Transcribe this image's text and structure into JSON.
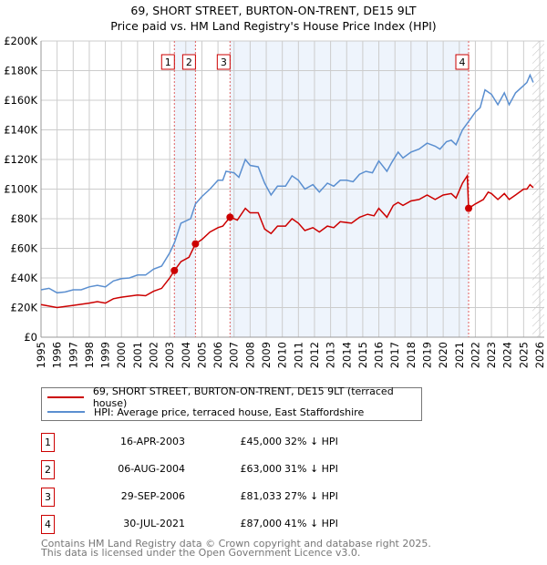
{
  "title_line1": "69, SHORT STREET, BURTON-ON-TRENT, DE15 9LT",
  "title_line2": "Price paid vs. HM Land Registry's House Price Index (HPI)",
  "chart_data": {
    "type": "line",
    "title": "69, SHORT STREET, BURTON-ON-TRENT, DE15 9LT - Price paid vs. HM Land Registry's House Price Index (HPI)",
    "xlim": [
      1995,
      2026
    ],
    "ylim": [
      0,
      200000
    ],
    "grid": true,
    "x_ticks": [
      "1995",
      "1996",
      "1997",
      "1998",
      "1999",
      "2000",
      "2001",
      "2002",
      "2003",
      "2004",
      "2005",
      "2006",
      "2007",
      "2008",
      "2009",
      "2010",
      "2011",
      "2012",
      "2013",
      "2014",
      "2015",
      "2016",
      "2017",
      "2018",
      "2019",
      "2020",
      "2021",
      "2022",
      "2023",
      "2024",
      "2025",
      "2026"
    ],
    "y_ticks": [
      {
        "v": 0,
        "label": "£0"
      },
      {
        "v": 20000,
        "label": "£20K"
      },
      {
        "v": 40000,
        "label": "£40K"
      },
      {
        "v": 60000,
        "label": "£60K"
      },
      {
        "v": 80000,
        "label": "£80K"
      },
      {
        "v": 100000,
        "label": "£100K"
      },
      {
        "v": 120000,
        "label": "£120K"
      },
      {
        "v": 140000,
        "label": "£140K"
      },
      {
        "v": 160000,
        "label": "£160K"
      },
      {
        "v": 180000,
        "label": "£180K"
      },
      {
        "v": 200000,
        "label": "£200K"
      }
    ],
    "colors": {
      "property": "#cc0000",
      "hpi": "#5b8fd0",
      "band": "#eef4fc",
      "marker_line": "#e06060"
    },
    "series": [
      {
        "name": "property",
        "x": [
          1995,
          1996,
          1997,
          1998,
          1998.5,
          1999,
          1999.5,
          2000,
          2001,
          2001.5,
          2002,
          2002.5,
          2003,
          2003.29,
          2003.7,
          2004.2,
          2004.6,
          2005,
          2005.5,
          2006,
          2006.3,
          2006.75,
          2007,
          2007.2,
          2007.7,
          2008,
          2008.5,
          2008.9,
          2009.3,
          2009.7,
          2010.2,
          2010.6,
          2011,
          2011.4,
          2011.9,
          2012.3,
          2012.8,
          2013.2,
          2013.6,
          2014.3,
          2014.8,
          2015.3,
          2015.7,
          2016,
          2016.5,
          2016.9,
          2017.2,
          2017.5,
          2018,
          2018.5,
          2019,
          2019.5,
          2020,
          2020.5,
          2020.8,
          2021.2,
          2021.5,
          2021.58,
          2022,
          2022.5,
          2022.8,
          2023,
          2023.4,
          2023.8,
          2024.1,
          2024.5,
          2025,
          2025.2,
          2025.4,
          2025.6
        ],
        "values": [
          22000,
          20000,
          21500,
          23000,
          24000,
          23000,
          26000,
          27000,
          28500,
          28000,
          31000,
          33000,
          40000,
          45000,
          51000,
          54000,
          63000,
          66000,
          71000,
          74000,
          75000,
          81033,
          80000,
          79000,
          87000,
          84000,
          84000,
          73000,
          70000,
          75000,
          75000,
          80000,
          77000,
          72000,
          74000,
          71000,
          75000,
          74000,
          78000,
          77000,
          81000,
          83000,
          82000,
          87000,
          81000,
          89000,
          91000,
          89000,
          92000,
          93000,
          96000,
          93000,
          96000,
          97000,
          94000,
          104000,
          109000,
          87000,
          90000,
          93000,
          98000,
          97000,
          93000,
          97000,
          93000,
          96000,
          100000,
          100000,
          103000,
          101000
        ]
      },
      {
        "name": "hpi",
        "x": [
          1995,
          1995.5,
          1996,
          1996.5,
          1997,
          1997.5,
          1998,
          1998.5,
          1999,
          1999.5,
          2000,
          2000.5,
          2001,
          2001.5,
          2002,
          2002.5,
          2003,
          2003.3,
          2003.7,
          2004.3,
          2004.6,
          2005,
          2005.5,
          2006,
          2006.3,
          2006.5,
          2007,
          2007.3,
          2007.7,
          2008,
          2008.5,
          2008.9,
          2009.3,
          2009.7,
          2010.2,
          2010.6,
          2011,
          2011.4,
          2011.9,
          2012.3,
          2012.8,
          2013.2,
          2013.6,
          2014,
          2014.4,
          2014.8,
          2015.2,
          2015.6,
          2016,
          2016.5,
          2016.8,
          2017.2,
          2017.5,
          2018,
          2018.5,
          2019,
          2019.5,
          2019.8,
          2020.2,
          2020.5,
          2020.8,
          2021.2,
          2021.6,
          2022,
          2022.3,
          2022.6,
          2023,
          2023.4,
          2023.8,
          2024.1,
          2024.5,
          2025,
          2025.2,
          2025.4,
          2025.6
        ],
        "values": [
          32000,
          33000,
          30000,
          30500,
          32000,
          32000,
          34000,
          35000,
          34000,
          38000,
          39500,
          40000,
          42000,
          42000,
          46000,
          48000,
          57000,
          64000,
          77000,
          80000,
          90000,
          95000,
          100000,
          106000,
          106000,
          112000,
          111000,
          108000,
          120000,
          116000,
          115000,
          104000,
          96000,
          102000,
          102000,
          109000,
          106000,
          100000,
          103000,
          98000,
          104000,
          102000,
          106000,
          106000,
          105000,
          110000,
          112000,
          111000,
          119000,
          112000,
          118000,
          125000,
          121000,
          125000,
          127000,
          131000,
          129000,
          127000,
          132000,
          133000,
          130000,
          140000,
          146000,
          152000,
          155000,
          167000,
          164000,
          157000,
          165000,
          157000,
          165000,
          170000,
          172000,
          177000,
          172000
        ]
      }
    ],
    "sales": [
      {
        "n": "1",
        "x": 2003.29,
        "y": 45000
      },
      {
        "n": "2",
        "x": 2004.6,
        "y": 63000
      },
      {
        "n": "3",
        "x": 2006.75,
        "y": 81033
      },
      {
        "n": "4",
        "x": 2021.58,
        "y": 87000
      }
    ],
    "shaded_ranges": [
      [
        2003.29,
        2004.6
      ],
      [
        2006.75,
        2021.58
      ]
    ],
    "hatched_from": 2025.55,
    "legend": [
      "69, SHORT STREET, BURTON-ON-TRENT, DE15 9LT (terraced house)",
      "HPI: Average price, terraced house, East Staffordshire"
    ],
    "legend_position": "below"
  },
  "table": [
    {
      "n": "1",
      "date": "16-APR-2003",
      "price": "£45,000",
      "pct": "32% ↓ HPI"
    },
    {
      "n": "2",
      "date": "06-AUG-2004",
      "price": "£63,000",
      "pct": "31% ↓ HPI"
    },
    {
      "n": "3",
      "date": "29-SEP-2006",
      "price": "£81,033",
      "pct": "27% ↓ HPI"
    },
    {
      "n": "4",
      "date": "30-JUL-2021",
      "price": "£87,000",
      "pct": "41% ↓ HPI"
    }
  ],
  "footer1": "Contains HM Land Registry data © Crown copyright and database right 2025.",
  "footer2": "This data is licensed under the Open Government Licence v3.0."
}
